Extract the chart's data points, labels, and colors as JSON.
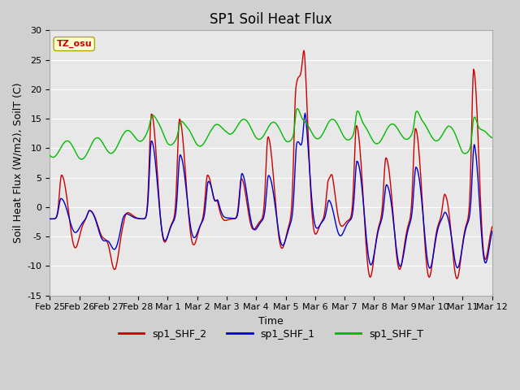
{
  "title": "SP1 Soil Heat Flux",
  "ylabel": "Soil Heat Flux (W/m2), SoilT (C)",
  "xlabel": "Time",
  "ylim": [
    -15,
    30
  ],
  "tz_label": "TZ_osu",
  "x_tick_labels": [
    "Feb 25",
    "Feb 26",
    "Feb 27",
    "Feb 28",
    "Mar 1",
    "Mar 2",
    "Mar 3",
    "Mar 4",
    "Mar 5",
    "Mar 6",
    "Mar 7",
    "Mar 8",
    "Mar 9",
    "Mar 10",
    "Mar 11",
    "Mar 12"
  ],
  "colors": {
    "sp1_SHF_2": "#cc0000",
    "sp1_SHF_1": "#0000cc",
    "sp1_SHF_T": "#00bb00"
  },
  "title_fontsize": 12,
  "axis_label_fontsize": 9,
  "tick_fontsize": 8,
  "legend_fontsize": 9,
  "linewidth": 1.0,
  "fig_bg": "#d0d0d0",
  "ax_bg": "#e8e8e8"
}
